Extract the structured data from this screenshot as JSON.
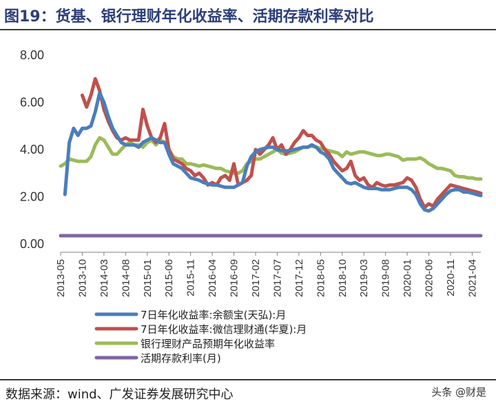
{
  "header": {
    "title": "图19：货基、银行理财年化收益率、活期存款利率对比"
  },
  "footer": {
    "source": "数据来源：wind、广发证券发展研究中心",
    "watermark": "头条 @财是"
  },
  "chart_data": {
    "type": "line",
    "title": "",
    "xlabel": "",
    "ylabel": "",
    "ylim": [
      0,
      8
    ],
    "yticks": [
      "0.00",
      "2.00",
      "4.00",
      "6.00",
      "8.00"
    ],
    "grid": false,
    "legend_position": "bottom",
    "x_start": "2013-05",
    "x_end": "2021-06",
    "xticks": [
      "2013-05",
      "2013-10",
      "2014-03",
      "2014-08",
      "2015-01",
      "2015-06",
      "2015-11",
      "2016-04",
      "2016-09",
      "2017-02",
      "2017-07",
      "2017-12",
      "2018-05",
      "2018-10",
      "2019-03",
      "2019-08",
      "2020-01",
      "2020-06",
      "2020-11",
      "2021-04"
    ],
    "series": [
      {
        "name": "7日年化收益率:余额宝(天弘):月",
        "color": "#4a7ebb",
        "points": [
          [
            "2013-06",
            2.1
          ],
          [
            "2013-07",
            4.3
          ],
          [
            "2013-08",
            4.9
          ],
          [
            "2013-09",
            4.6
          ],
          [
            "2013-10",
            4.9
          ],
          [
            "2013-11",
            4.9
          ],
          [
            "2013-12",
            5.0
          ],
          [
            "2014-01",
            5.6
          ],
          [
            "2014-02",
            6.4
          ],
          [
            "2014-03",
            6.0
          ],
          [
            "2014-04",
            5.4
          ],
          [
            "2014-05",
            4.9
          ],
          [
            "2014-06",
            4.6
          ],
          [
            "2014-07",
            4.3
          ],
          [
            "2014-08",
            4.2
          ],
          [
            "2014-09",
            4.2
          ],
          [
            "2014-10",
            4.2
          ],
          [
            "2014-11",
            4.1
          ],
          [
            "2014-12",
            4.3
          ],
          [
            "2015-01",
            4.4
          ],
          [
            "2015-02",
            4.5
          ],
          [
            "2015-03",
            4.4
          ],
          [
            "2015-04",
            4.3
          ],
          [
            "2015-05",
            4.3
          ],
          [
            "2015-06",
            3.8
          ],
          [
            "2015-07",
            3.4
          ],
          [
            "2015-08",
            3.3
          ],
          [
            "2015-09",
            3.2
          ],
          [
            "2015-10",
            3.0
          ],
          [
            "2015-11",
            2.8
          ],
          [
            "2015-12",
            2.75
          ],
          [
            "2016-01",
            2.7
          ],
          [
            "2016-02",
            2.6
          ],
          [
            "2016-03",
            2.55
          ],
          [
            "2016-04",
            2.5
          ],
          [
            "2016-05",
            2.5
          ],
          [
            "2016-06",
            2.45
          ],
          [
            "2016-07",
            2.4
          ],
          [
            "2016-08",
            2.4
          ],
          [
            "2016-09",
            2.4
          ],
          [
            "2016-10",
            2.5
          ],
          [
            "2016-11",
            2.6
          ],
          [
            "2016-12",
            3.3
          ],
          [
            "2017-01",
            3.7
          ],
          [
            "2017-02",
            3.9
          ],
          [
            "2017-03",
            4.0
          ],
          [
            "2017-04",
            4.05
          ],
          [
            "2017-05",
            4.1
          ],
          [
            "2017-06",
            4.1
          ],
          [
            "2017-07",
            4.0
          ],
          [
            "2017-08",
            3.95
          ],
          [
            "2017-09",
            3.95
          ],
          [
            "2017-10",
            3.95
          ],
          [
            "2017-11",
            4.0
          ],
          [
            "2017-12",
            4.05
          ],
          [
            "2018-01",
            4.1
          ],
          [
            "2018-02",
            4.1
          ],
          [
            "2018-03",
            4.2
          ],
          [
            "2018-04",
            4.1
          ],
          [
            "2018-05",
            3.9
          ],
          [
            "2018-06",
            3.8
          ],
          [
            "2018-07",
            3.6
          ],
          [
            "2018-08",
            3.2
          ],
          [
            "2018-09",
            3.0
          ],
          [
            "2018-10",
            2.8
          ],
          [
            "2018-11",
            2.6
          ],
          [
            "2018-12",
            2.55
          ],
          [
            "2019-01",
            2.6
          ],
          [
            "2019-02",
            2.5
          ],
          [
            "2019-03",
            2.4
          ],
          [
            "2019-04",
            2.35
          ],
          [
            "2019-05",
            2.35
          ],
          [
            "2019-06",
            2.35
          ],
          [
            "2019-07",
            2.3
          ],
          [
            "2019-08",
            2.3
          ],
          [
            "2019-09",
            2.3
          ],
          [
            "2019-10",
            2.35
          ],
          [
            "2019-11",
            2.4
          ],
          [
            "2019-12",
            2.4
          ],
          [
            "2020-01",
            2.4
          ],
          [
            "2020-02",
            2.3
          ],
          [
            "2020-03",
            2.1
          ],
          [
            "2020-04",
            1.7
          ],
          [
            "2020-05",
            1.45
          ],
          [
            "2020-06",
            1.4
          ],
          [
            "2020-07",
            1.5
          ],
          [
            "2020-08",
            1.7
          ],
          [
            "2020-09",
            1.9
          ],
          [
            "2020-10",
            2.1
          ],
          [
            "2020-11",
            2.25
          ],
          [
            "2020-12",
            2.3
          ],
          [
            "2021-01",
            2.3
          ],
          [
            "2021-02",
            2.2
          ],
          [
            "2021-03",
            2.2
          ],
          [
            "2021-04",
            2.15
          ],
          [
            "2021-05",
            2.1
          ],
          [
            "2021-06",
            2.05
          ]
        ]
      },
      {
        "name": "7日年化收益率:微信理财通(华夏):月",
        "color": "#c0504d",
        "points": [
          [
            "2013-10",
            6.3
          ],
          [
            "2013-11",
            5.8
          ],
          [
            "2013-12",
            6.3
          ],
          [
            "2014-01",
            7.0
          ],
          [
            "2014-02",
            6.5
          ],
          [
            "2014-03",
            5.7
          ],
          [
            "2014-04",
            5.2
          ],
          [
            "2014-05",
            4.8
          ],
          [
            "2014-06",
            4.5
          ],
          [
            "2014-07",
            4.4
          ],
          [
            "2014-08",
            4.5
          ],
          [
            "2014-09",
            4.4
          ],
          [
            "2014-10",
            4.4
          ],
          [
            "2014-11",
            4.4
          ],
          [
            "2014-12",
            5.7
          ],
          [
            "2015-01",
            5.0
          ],
          [
            "2015-02",
            4.5
          ],
          [
            "2015-03",
            4.3
          ],
          [
            "2015-04",
            4.5
          ],
          [
            "2015-05",
            5.1
          ],
          [
            "2015-06",
            4.0
          ],
          [
            "2015-07",
            3.6
          ],
          [
            "2015-08",
            3.5
          ],
          [
            "2015-09",
            3.4
          ],
          [
            "2015-10",
            3.2
          ],
          [
            "2015-11",
            3.1
          ],
          [
            "2015-12",
            2.9
          ],
          [
            "2016-01",
            3.0
          ],
          [
            "2016-02",
            2.8
          ],
          [
            "2016-03",
            2.5
          ],
          [
            "2016-04",
            2.6
          ],
          [
            "2016-05",
            2.5
          ],
          [
            "2016-06",
            2.8
          ],
          [
            "2016-07",
            2.9
          ],
          [
            "2016-08",
            2.7
          ],
          [
            "2016-09",
            3.4
          ],
          [
            "2016-10",
            2.5
          ],
          [
            "2016-11",
            2.6
          ],
          [
            "2016-12",
            2.7
          ],
          [
            "2017-01",
            2.9
          ],
          [
            "2017-02",
            4.0
          ],
          [
            "2017-03",
            3.8
          ],
          [
            "2017-04",
            4.0
          ],
          [
            "2017-05",
            4.2
          ],
          [
            "2017-06",
            4.5
          ],
          [
            "2017-07",
            4.0
          ],
          [
            "2017-08",
            4.2
          ],
          [
            "2017-09",
            3.8
          ],
          [
            "2017-10",
            4.0
          ],
          [
            "2017-11",
            4.3
          ],
          [
            "2017-12",
            4.5
          ],
          [
            "2018-01",
            4.8
          ],
          [
            "2018-02",
            4.6
          ],
          [
            "2018-03",
            4.6
          ],
          [
            "2018-04",
            4.4
          ],
          [
            "2018-05",
            4.3
          ],
          [
            "2018-06",
            4.0
          ],
          [
            "2018-07",
            3.8
          ],
          [
            "2018-08",
            3.5
          ],
          [
            "2018-09",
            3.3
          ],
          [
            "2018-10",
            3.1
          ],
          [
            "2018-11",
            3.2
          ],
          [
            "2018-12",
            3.5
          ],
          [
            "2019-01",
            2.9
          ],
          [
            "2019-02",
            2.7
          ],
          [
            "2019-03",
            2.8
          ],
          [
            "2019-04",
            2.5
          ],
          [
            "2019-05",
            2.4
          ],
          [
            "2019-06",
            2.6
          ],
          [
            "2019-07",
            2.5
          ],
          [
            "2019-08",
            2.45
          ],
          [
            "2019-09",
            2.5
          ],
          [
            "2019-10",
            2.5
          ],
          [
            "2019-11",
            2.55
          ],
          [
            "2019-12",
            2.6
          ],
          [
            "2020-01",
            2.8
          ],
          [
            "2020-02",
            2.7
          ],
          [
            "2020-03",
            2.4
          ],
          [
            "2020-04",
            1.9
          ],
          [
            "2020-05",
            1.55
          ],
          [
            "2020-06",
            1.7
          ],
          [
            "2020-07",
            1.6
          ],
          [
            "2020-08",
            1.9
          ],
          [
            "2020-09",
            2.1
          ],
          [
            "2020-10",
            2.3
          ],
          [
            "2020-11",
            2.5
          ],
          [
            "2020-12",
            2.45
          ],
          [
            "2021-01",
            2.4
          ],
          [
            "2021-02",
            2.35
          ],
          [
            "2021-03",
            2.3
          ],
          [
            "2021-04",
            2.25
          ],
          [
            "2021-05",
            2.2
          ],
          [
            "2021-06",
            2.15
          ]
        ]
      },
      {
        "name": "银行理财产品预期年化收益率",
        "color": "#9bbb59",
        "points": [
          [
            "2013-05",
            3.3
          ],
          [
            "2013-06",
            3.4
          ],
          [
            "2013-07",
            3.6
          ],
          [
            "2013-08",
            3.55
          ],
          [
            "2013-09",
            3.5
          ],
          [
            "2013-10",
            3.5
          ],
          [
            "2013-11",
            3.5
          ],
          [
            "2013-12",
            3.7
          ],
          [
            "2014-01",
            4.2
          ],
          [
            "2014-02",
            4.5
          ],
          [
            "2014-03",
            4.4
          ],
          [
            "2014-04",
            4.1
          ],
          [
            "2014-05",
            3.8
          ],
          [
            "2014-06",
            3.8
          ],
          [
            "2014-07",
            4.0
          ],
          [
            "2014-08",
            4.2
          ],
          [
            "2014-09",
            4.3
          ],
          [
            "2014-10",
            4.2
          ],
          [
            "2014-11",
            4.2
          ],
          [
            "2014-12",
            4.1
          ],
          [
            "2015-01",
            4.3
          ],
          [
            "2015-02",
            4.4
          ],
          [
            "2015-03",
            4.2
          ],
          [
            "2015-04",
            4.4
          ],
          [
            "2015-05",
            4.3
          ],
          [
            "2015-06",
            4.0
          ],
          [
            "2015-07",
            3.7
          ],
          [
            "2015-08",
            3.6
          ],
          [
            "2015-09",
            3.6
          ],
          [
            "2015-10",
            3.4
          ],
          [
            "2015-11",
            3.4
          ],
          [
            "2015-12",
            3.35
          ],
          [
            "2016-01",
            3.3
          ],
          [
            "2016-02",
            3.35
          ],
          [
            "2016-03",
            3.3
          ],
          [
            "2016-04",
            3.25
          ],
          [
            "2016-05",
            3.2
          ],
          [
            "2016-06",
            3.2
          ],
          [
            "2016-07",
            3.1
          ],
          [
            "2016-08",
            3.05
          ],
          [
            "2016-09",
            3.0
          ],
          [
            "2016-10",
            3.0
          ],
          [
            "2016-11",
            3.1
          ],
          [
            "2016-12",
            3.4
          ],
          [
            "2017-01",
            3.5
          ],
          [
            "2017-02",
            3.6
          ],
          [
            "2017-03",
            3.6
          ],
          [
            "2017-04",
            3.7
          ],
          [
            "2017-05",
            3.8
          ],
          [
            "2017-06",
            3.9
          ],
          [
            "2017-07",
            4.0
          ],
          [
            "2017-08",
            3.85
          ],
          [
            "2017-09",
            3.8
          ],
          [
            "2017-10",
            3.85
          ],
          [
            "2017-11",
            3.9
          ],
          [
            "2017-12",
            4.0
          ],
          [
            "2018-01",
            4.1
          ],
          [
            "2018-02",
            4.1
          ],
          [
            "2018-03",
            4.15
          ],
          [
            "2018-04",
            4.1
          ],
          [
            "2018-05",
            4.05
          ],
          [
            "2018-06",
            4.0
          ],
          [
            "2018-07",
            3.95
          ],
          [
            "2018-08",
            3.9
          ],
          [
            "2018-09",
            3.85
          ],
          [
            "2018-10",
            3.7
          ],
          [
            "2018-11",
            3.9
          ],
          [
            "2018-12",
            3.8
          ],
          [
            "2019-01",
            3.85
          ],
          [
            "2019-02",
            3.9
          ],
          [
            "2019-03",
            3.9
          ],
          [
            "2019-04",
            3.85
          ],
          [
            "2019-05",
            3.8
          ],
          [
            "2019-06",
            3.75
          ],
          [
            "2019-07",
            3.75
          ],
          [
            "2019-08",
            3.8
          ],
          [
            "2019-09",
            3.8
          ],
          [
            "2019-10",
            3.75
          ],
          [
            "2019-11",
            3.7
          ],
          [
            "2019-12",
            3.55
          ],
          [
            "2020-01",
            3.6
          ],
          [
            "2020-02",
            3.6
          ],
          [
            "2020-03",
            3.6
          ],
          [
            "2020-04",
            3.65
          ],
          [
            "2020-05",
            3.55
          ],
          [
            "2020-06",
            3.4
          ],
          [
            "2020-07",
            3.3
          ],
          [
            "2020-08",
            3.2
          ],
          [
            "2020-09",
            3.2
          ],
          [
            "2020-10",
            3.15
          ],
          [
            "2020-11",
            3.1
          ],
          [
            "2020-12",
            2.9
          ],
          [
            "2021-01",
            2.85
          ],
          [
            "2021-02",
            2.85
          ],
          [
            "2021-03",
            2.8
          ],
          [
            "2021-04",
            2.8
          ],
          [
            "2021-05",
            2.75
          ],
          [
            "2021-06",
            2.75
          ]
        ]
      },
      {
        "name": "活期存款利率(月)",
        "color": "#8064a2",
        "points": [
          [
            "2013-05",
            0.35
          ],
          [
            "2021-06",
            0.35
          ]
        ]
      }
    ]
  }
}
